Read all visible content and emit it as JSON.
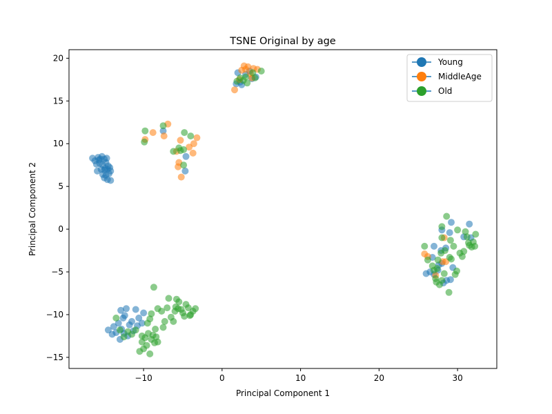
{
  "chart_data": {
    "type": "scatter",
    "title": "TSNE Original by age",
    "xlabel": "Principal Component 1",
    "ylabel": "Principal Component 2",
    "xlim": [
      -19.5,
      35
    ],
    "ylim": [
      -16.3,
      21
    ],
    "xticks": [
      -10,
      0,
      10,
      20,
      30
    ],
    "yticks": [
      -15,
      -10,
      -5,
      0,
      5,
      10,
      15,
      20
    ],
    "grid": false,
    "legend": {
      "placement": "top-right",
      "entries": [
        "Young",
        "MiddleAge",
        "Old"
      ]
    },
    "series": [
      {
        "name": "Young",
        "color": "#1f77b4",
        "points": [
          [
            -16.5,
            8.3
          ],
          [
            -16.2,
            8.0
          ],
          [
            -15.8,
            8.4
          ],
          [
            -15.5,
            8.2
          ],
          [
            -15.3,
            8.5
          ],
          [
            -15.0,
            8.2
          ],
          [
            -14.7,
            8.3
          ],
          [
            -16.0,
            7.6
          ],
          [
            -15.6,
            7.7
          ],
          [
            -15.2,
            7.5
          ],
          [
            -14.8,
            7.8
          ],
          [
            -14.5,
            7.4
          ],
          [
            -15.9,
            6.8
          ],
          [
            -15.4,
            7.0
          ],
          [
            -15.0,
            6.9
          ],
          [
            -14.6,
            7.0
          ],
          [
            -14.2,
            6.8
          ],
          [
            -15.2,
            6.4
          ],
          [
            -14.8,
            6.3
          ],
          [
            -14.4,
            6.5
          ],
          [
            -15.0,
            6.0
          ],
          [
            -14.6,
            5.8
          ],
          [
            -14.2,
            5.7
          ],
          [
            -15.7,
            8.1
          ],
          [
            -14.9,
            7.1
          ],
          [
            -14.3,
            7.2
          ],
          [
            1.8,
            17.0
          ],
          [
            2.3,
            17.2
          ],
          [
            2.0,
            18.3
          ],
          [
            2.5,
            16.9
          ],
          [
            3.5,
            18.5
          ],
          [
            3.8,
            17.6
          ],
          [
            4.3,
            17.8
          ],
          [
            3.0,
            18.1
          ],
          [
            -7.5,
            11.5
          ],
          [
            -4.6,
            8.5
          ],
          [
            -4.7,
            6.8
          ],
          [
            -14.0,
            -12.3
          ],
          [
            -13.5,
            -12.1
          ],
          [
            -13.0,
            -12.9
          ],
          [
            -12.8,
            -11.7
          ],
          [
            -12.5,
            -12.2
          ],
          [
            -13.2,
            -11.0
          ],
          [
            -12.6,
            -10.4
          ],
          [
            -12.2,
            -9.3
          ],
          [
            -12.4,
            -10.1
          ],
          [
            -12.9,
            -9.5
          ],
          [
            -11.8,
            -11.2
          ],
          [
            -11.5,
            -10.8
          ],
          [
            -11.0,
            -9.4
          ],
          [
            -10.6,
            -10.4
          ],
          [
            -11.3,
            -11.9
          ],
          [
            -10.2,
            -11.0
          ],
          [
            -10.8,
            -11.3
          ],
          [
            -10.0,
            -9.8
          ],
          [
            -12.0,
            -12.5
          ],
          [
            -14.5,
            -11.8
          ],
          [
            -13.8,
            -11.4
          ],
          [
            26.0,
            -5.2
          ],
          [
            26.5,
            -5.0
          ],
          [
            27.0,
            -5.3
          ],
          [
            27.5,
            -4.8
          ],
          [
            28.2,
            -6.3
          ],
          [
            28.6,
            -6.0
          ],
          [
            29.1,
            -5.9
          ],
          [
            27.0,
            -2.0
          ],
          [
            27.9,
            -2.5
          ],
          [
            28.0,
            -0.1
          ],
          [
            28.5,
            -2.2
          ],
          [
            29.0,
            -0.4
          ],
          [
            29.4,
            -4.5
          ],
          [
            29.2,
            0.8
          ],
          [
            31.5,
            0.6
          ],
          [
            31.7,
            -1.0
          ],
          [
            30.8,
            -0.9
          ],
          [
            27.6,
            -4.2
          ],
          [
            26.8,
            -3.3
          ],
          [
            28.0,
            -4.0
          ]
        ]
      },
      {
        "name": "MiddleAge",
        "color": "#ff7f0e",
        "points": [
          [
            1.6,
            16.3
          ],
          [
            2.5,
            18.6
          ],
          [
            2.8,
            19.1
          ],
          [
            3.3,
            19.0
          ],
          [
            3.0,
            18.7
          ],
          [
            3.6,
            18.2
          ],
          [
            4.0,
            18.8
          ],
          [
            4.5,
            18.7
          ],
          [
            2.2,
            17.5
          ],
          [
            3.8,
            17.7
          ],
          [
            -9.8,
            10.5
          ],
          [
            -8.8,
            11.3
          ],
          [
            -7.4,
            10.9
          ],
          [
            -6.9,
            12.3
          ],
          [
            -5.8,
            9.1
          ],
          [
            -5.3,
            10.4
          ],
          [
            -5.5,
            7.8
          ],
          [
            -5.6,
            7.3
          ],
          [
            -5.2,
            6.1
          ],
          [
            -4.2,
            9.6
          ],
          [
            -3.6,
            10.0
          ],
          [
            -3.7,
            8.9
          ],
          [
            -3.2,
            10.7
          ],
          [
            25.8,
            -2.9
          ],
          [
            26.2,
            -3.2
          ],
          [
            27.2,
            -5.4
          ],
          [
            28.3,
            -1.0
          ],
          [
            28.5,
            -3.8
          ],
          [
            28.1,
            -3.8
          ]
        ]
      },
      {
        "name": "Old",
        "color": "#2ca02c",
        "points": [
          [
            1.9,
            17.3
          ],
          [
            2.3,
            17.7
          ],
          [
            3.2,
            17.1
          ],
          [
            3.0,
            17.8
          ],
          [
            4.2,
            17.7
          ],
          [
            5.0,
            18.5
          ],
          [
            2.7,
            17.4
          ],
          [
            3.9,
            18.3
          ],
          [
            -9.9,
            10.2
          ],
          [
            -9.8,
            11.5
          ],
          [
            -7.5,
            12.1
          ],
          [
            -6.2,
            9.1
          ],
          [
            -5.3,
            9.2
          ],
          [
            -4.8,
            11.3
          ],
          [
            -4.9,
            9.3
          ],
          [
            -4.9,
            7.5
          ],
          [
            -4.0,
            10.9
          ],
          [
            -5.5,
            9.5
          ],
          [
            -8.7,
            -6.8
          ],
          [
            -13.5,
            -10.4
          ],
          [
            -13.0,
            -11.8
          ],
          [
            -12.5,
            -12.6
          ],
          [
            -12.0,
            -12.0
          ],
          [
            -11.5,
            -12.3
          ],
          [
            -11.0,
            -11.8
          ],
          [
            -10.5,
            -14.3
          ],
          [
            -10.2,
            -13.2
          ],
          [
            -10.0,
            -14.0
          ],
          [
            -9.6,
            -13.6
          ],
          [
            -9.2,
            -14.6
          ],
          [
            -9.0,
            -12.9
          ],
          [
            -8.8,
            -12.4
          ],
          [
            -8.6,
            -13.3
          ],
          [
            -8.4,
            -12.6
          ],
          [
            -8.2,
            -13.2
          ],
          [
            -9.4,
            -12.2
          ],
          [
            -9.8,
            -12.7
          ],
          [
            -10.2,
            -12.5
          ],
          [
            -9.5,
            -11.0
          ],
          [
            -9.2,
            -10.5
          ],
          [
            -9.0,
            -9.9
          ],
          [
            -8.5,
            -11.7
          ],
          [
            -8.2,
            -9.3
          ],
          [
            -7.7,
            -9.6
          ],
          [
            -7.5,
            -11.5
          ],
          [
            -7.3,
            -10.8
          ],
          [
            -7.0,
            -9.2
          ],
          [
            -6.8,
            -8.1
          ],
          [
            -6.5,
            -10.3
          ],
          [
            -6.2,
            -10.8
          ],
          [
            -6.0,
            -9.6
          ],
          [
            -5.8,
            -8.2
          ],
          [
            -5.6,
            -9.3
          ],
          [
            -5.5,
            -8.5
          ],
          [
            -5.2,
            -9.4
          ],
          [
            -5.0,
            -9.8
          ],
          [
            -4.6,
            -8.8
          ],
          [
            -4.3,
            -9.2
          ],
          [
            -4.0,
            -10.0
          ],
          [
            -3.7,
            -9.6
          ],
          [
            -3.4,
            -9.3
          ],
          [
            -4.8,
            -10.2
          ],
          [
            -4.1,
            -10.1
          ],
          [
            -5.9,
            -9.1
          ],
          [
            25.8,
            -2.0
          ],
          [
            26.2,
            -3.6
          ],
          [
            26.8,
            -4.3
          ],
          [
            27.0,
            -4.8
          ],
          [
            27.2,
            -5.8
          ],
          [
            27.3,
            -6.2
          ],
          [
            27.7,
            -6.5
          ],
          [
            28.0,
            -6.0
          ],
          [
            28.3,
            -5.2
          ],
          [
            28.6,
            1.5
          ],
          [
            28.9,
            -7.4
          ],
          [
            29.2,
            -3.5
          ],
          [
            29.5,
            -2.0
          ],
          [
            29.7,
            -5.3
          ],
          [
            29.9,
            -4.9
          ],
          [
            30.0,
            -0.1
          ],
          [
            30.3,
            -2.8
          ],
          [
            30.6,
            -3.2
          ],
          [
            31.0,
            -0.3
          ],
          [
            31.2,
            -0.9
          ],
          [
            31.5,
            -1.9
          ],
          [
            31.8,
            -2.1
          ],
          [
            32.0,
            -1.5
          ],
          [
            32.2,
            -2.0
          ],
          [
            32.3,
            -0.6
          ],
          [
            27.9,
            -2.8
          ],
          [
            27.5,
            -3.6
          ],
          [
            28.0,
            0.3
          ],
          [
            29.1,
            -1.3
          ],
          [
            28.4,
            -2.5
          ],
          [
            27.4,
            -4.6
          ],
          [
            30.8,
            -2.6
          ],
          [
            31.4,
            -1.6
          ],
          [
            28.0,
            -1.0
          ],
          [
            29.0,
            -3.3
          ]
        ]
      }
    ]
  }
}
